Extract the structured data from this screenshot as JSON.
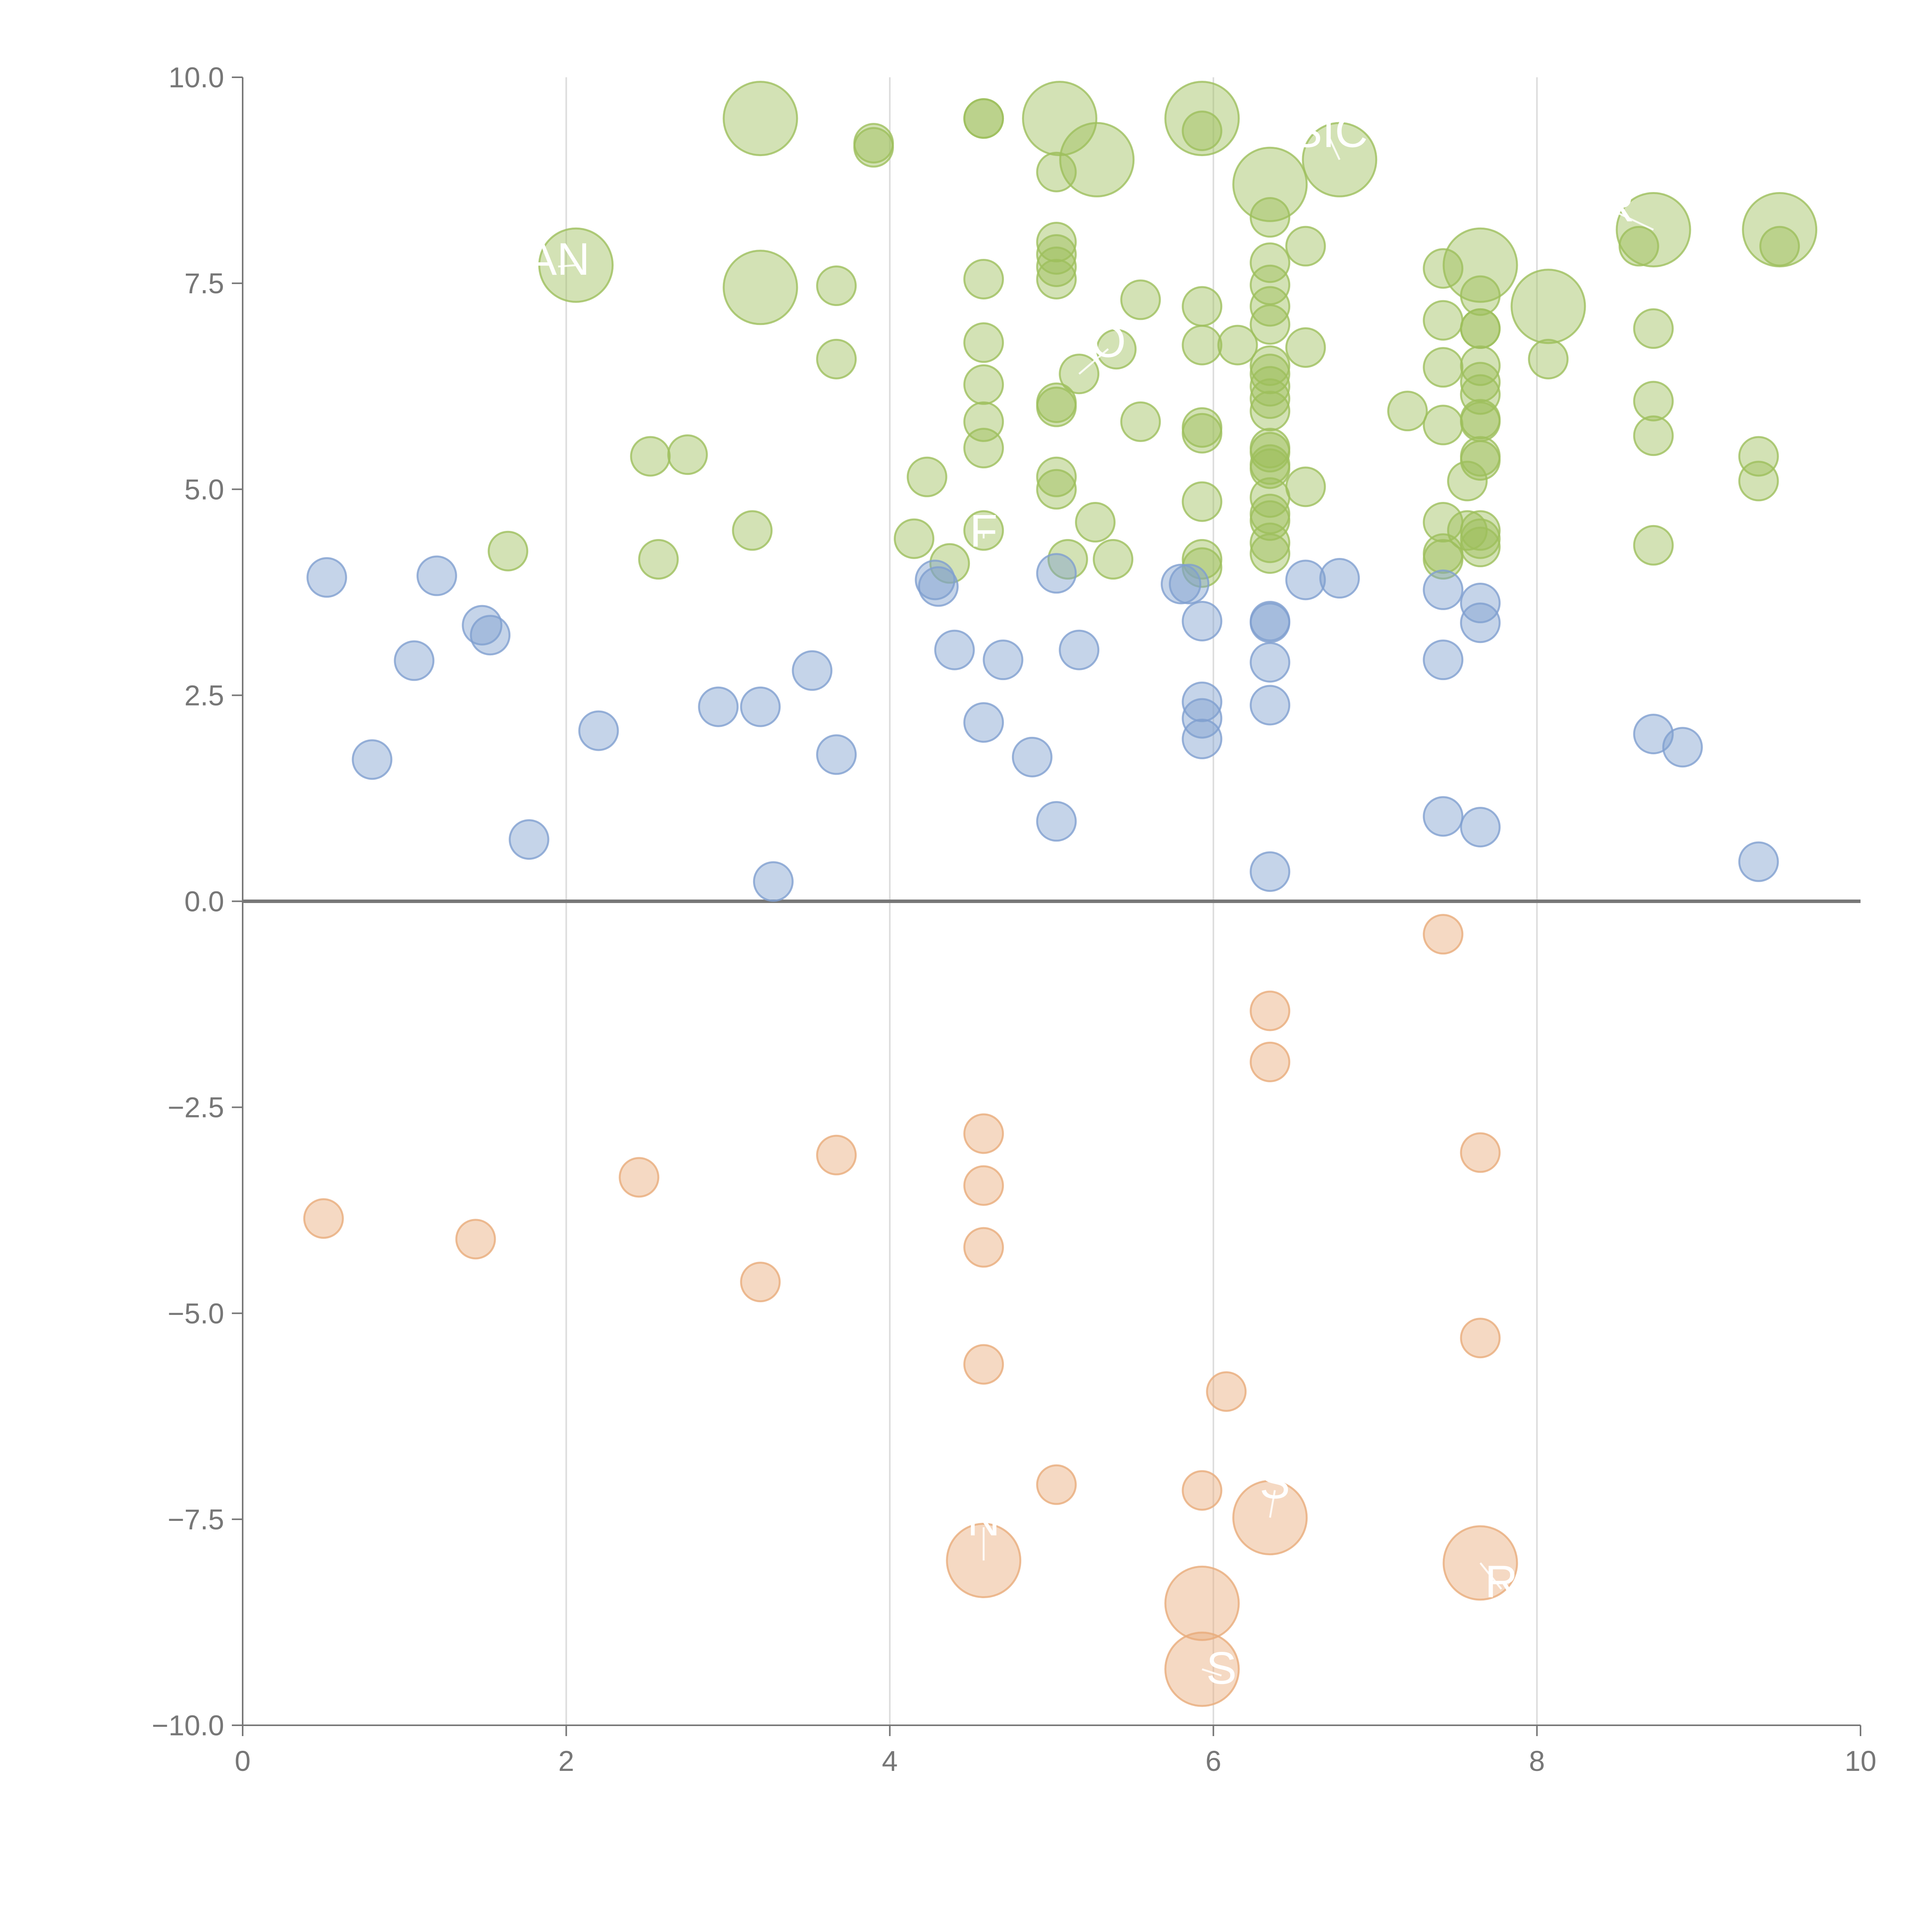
{
  "chart_data": {
    "type": "scatter",
    "title": "",
    "xlabel": "",
    "ylabel": "",
    "xlim": [
      0,
      10
    ],
    "ylim": [
      -10,
      10
    ],
    "x_ticks": [
      0,
      2,
      4,
      6,
      8,
      10
    ],
    "y_ticks": [
      10,
      7.5,
      5,
      2.5,
      0,
      -2.5,
      -5,
      -7.5,
      -10
    ],
    "x_tick_labels": [
      "0",
      "2",
      "4",
      "6",
      "8",
      "10"
    ],
    "y_tick_labels": [
      "10.0",
      "7.5",
      "5.0",
      "2.5",
      "0.0",
      "−2.5",
      "−5.0",
      "−7.5",
      "−10.0"
    ],
    "grid": "vertical",
    "legend": "none",
    "series": [
      {
        "name": "high",
        "color": "#9dbf5c",
        "points": [
          [
            3.2,
            9.5,
            2
          ],
          [
            5.05,
            9.5,
            2
          ],
          [
            5.93,
            9.5,
            2
          ],
          [
            5.28,
            9.0,
            2
          ],
          [
            6.78,
            9.0,
            2
          ],
          [
            6.35,
            8.7,
            2
          ],
          [
            8.72,
            8.15,
            2
          ],
          [
            9.5,
            8.15,
            2
          ],
          [
            2.06,
            7.72,
            2
          ],
          [
            7.65,
            7.72,
            2
          ],
          [
            3.2,
            7.45,
            2
          ],
          [
            8.07,
            7.22,
            2
          ],
          [
            3.9,
            9.2,
            1
          ],
          [
            3.9,
            9.15,
            1
          ],
          [
            4.58,
            9.5,
            1
          ],
          [
            4.58,
            9.5,
            1
          ],
          [
            5.03,
            8.85,
            1
          ],
          [
            5.93,
            9.35,
            1
          ],
          [
            6.35,
            8.3,
            1
          ],
          [
            6.57,
            7.95,
            1
          ],
          [
            8.63,
            7.95,
            1
          ],
          [
            9.5,
            7.95,
            1
          ],
          [
            5.03,
            8.0,
            1
          ],
          [
            5.03,
            7.85,
            1
          ],
          [
            5.03,
            7.7,
            1
          ],
          [
            5.03,
            7.55,
            1
          ],
          [
            6.35,
            7.75,
            1
          ],
          [
            7.42,
            7.68,
            1
          ],
          [
            4.58,
            7.55,
            1
          ],
          [
            3.67,
            7.47,
            1
          ],
          [
            6.35,
            7.48,
            1
          ],
          [
            7.65,
            7.35,
            1
          ],
          [
            5.55,
            7.3,
            1
          ],
          [
            5.93,
            7.22,
            1
          ],
          [
            6.35,
            7.22,
            1
          ],
          [
            6.35,
            7.0,
            1
          ],
          [
            7.42,
            7.05,
            1
          ],
          [
            7.65,
            6.95,
            1
          ],
          [
            7.65,
            6.95,
            1
          ],
          [
            8.72,
            6.95,
            1
          ],
          [
            4.58,
            6.78,
            1
          ],
          [
            5.93,
            6.75,
            1
          ],
          [
            6.15,
            6.75,
            1
          ],
          [
            6.57,
            6.72,
            1
          ],
          [
            5.4,
            6.7,
            1
          ],
          [
            3.67,
            6.58,
            1
          ],
          [
            8.07,
            6.58,
            1
          ],
          [
            6.35,
            6.5,
            1
          ],
          [
            7.42,
            6.48,
            1
          ],
          [
            7.65,
            6.5,
            1
          ],
          [
            5.17,
            6.4,
            1
          ],
          [
            6.35,
            6.4,
            1
          ],
          [
            7.65,
            6.3,
            1
          ],
          [
            6.35,
            6.25,
            1
          ],
          [
            4.58,
            6.27,
            1
          ],
          [
            7.65,
            6.15,
            1
          ],
          [
            6.35,
            6.1,
            1
          ],
          [
            8.72,
            6.07,
            1
          ],
          [
            5.03,
            6.05,
            1
          ],
          [
            5.03,
            6.0,
            1
          ],
          [
            6.35,
            5.95,
            1
          ],
          [
            7.2,
            5.95,
            1
          ],
          [
            4.58,
            5.82,
            1
          ],
          [
            5.55,
            5.82,
            1
          ],
          [
            7.42,
            5.78,
            1
          ],
          [
            7.65,
            5.85,
            1
          ],
          [
            7.65,
            5.82,
            1
          ],
          [
            5.93,
            5.75,
            1
          ],
          [
            5.93,
            5.68,
            1
          ],
          [
            8.72,
            5.65,
            1
          ],
          [
            4.58,
            5.5,
            1
          ],
          [
            6.35,
            5.5,
            1
          ],
          [
            6.35,
            5.45,
            1
          ],
          [
            2.52,
            5.4,
            1
          ],
          [
            2.75,
            5.42,
            1
          ],
          [
            7.65,
            5.4,
            1
          ],
          [
            7.65,
            5.35,
            1
          ],
          [
            9.37,
            5.4,
            1
          ],
          [
            6.35,
            5.3,
            1
          ],
          [
            6.35,
            5.25,
            1
          ],
          [
            4.23,
            5.15,
            1
          ],
          [
            5.03,
            5.15,
            1
          ],
          [
            7.57,
            5.1,
            1
          ],
          [
            9.37,
            5.1,
            1
          ],
          [
            6.57,
            5.03,
            1
          ],
          [
            5.03,
            5.0,
            1
          ],
          [
            6.35,
            4.9,
            1
          ],
          [
            5.93,
            4.85,
            1
          ],
          [
            6.35,
            4.7,
            1
          ],
          [
            6.35,
            4.62,
            1
          ],
          [
            5.27,
            4.6,
            1
          ],
          [
            7.42,
            4.6,
            1
          ],
          [
            3.15,
            4.5,
            1
          ],
          [
            4.58,
            4.5,
            1
          ],
          [
            7.57,
            4.5,
            1
          ],
          [
            7.65,
            4.5,
            1
          ],
          [
            7.65,
            4.4,
            1
          ],
          [
            4.15,
            4.4,
            1
          ],
          [
            6.35,
            4.35,
            1
          ],
          [
            8.72,
            4.32,
            1
          ],
          [
            7.65,
            4.3,
            1
          ],
          [
            1.64,
            4.25,
            1
          ],
          [
            6.35,
            4.22,
            1
          ],
          [
            7.42,
            4.22,
            1
          ],
          [
            7.42,
            4.15,
            1
          ],
          [
            2.57,
            4.15,
            1
          ],
          [
            5.38,
            4.15,
            1
          ],
          [
            5.93,
            4.15,
            1
          ],
          [
            5.1,
            4.15,
            1
          ],
          [
            4.37,
            4.1,
            1
          ],
          [
            5.93,
            4.05,
            1
          ]
        ]
      },
      {
        "name": "mid",
        "color": "#7f9fcf",
        "points": [
          [
            0.52,
            3.93,
            1
          ],
          [
            1.2,
            3.95,
            1
          ],
          [
            4.28,
            3.9,
            1
          ],
          [
            6.57,
            3.9,
            1
          ],
          [
            6.78,
            3.92,
            1
          ],
          [
            5.03,
            3.98,
            1
          ],
          [
            4.3,
            3.82,
            1
          ],
          [
            5.8,
            3.85,
            1
          ],
          [
            5.85,
            3.85,
            1
          ],
          [
            7.42,
            3.78,
            1
          ],
          [
            7.65,
            3.62,
            1
          ],
          [
            5.93,
            3.4,
            1
          ],
          [
            6.35,
            3.4,
            1
          ],
          [
            6.35,
            3.38,
            1
          ],
          [
            7.65,
            3.38,
            1
          ],
          [
            1.48,
            3.35,
            1
          ],
          [
            1.53,
            3.23,
            1
          ],
          [
            4.4,
            3.05,
            1
          ],
          [
            5.17,
            3.05,
            1
          ],
          [
            1.06,
            2.92,
            1
          ],
          [
            4.7,
            2.93,
            1
          ],
          [
            6.35,
            2.9,
            1
          ],
          [
            7.42,
            2.93,
            1
          ],
          [
            3.52,
            2.8,
            1
          ],
          [
            5.93,
            2.42,
            1
          ],
          [
            2.94,
            2.36,
            1
          ],
          [
            3.2,
            2.36,
            1
          ],
          [
            6.35,
            2.38,
            1
          ],
          [
            5.93,
            2.22,
            1
          ],
          [
            4.58,
            2.17,
            1
          ],
          [
            2.2,
            2.07,
            1
          ],
          [
            8.72,
            2.03,
            1
          ],
          [
            5.93,
            1.97,
            1
          ],
          [
            8.9,
            1.87,
            1
          ],
          [
            3.67,
            1.78,
            1
          ],
          [
            4.88,
            1.75,
            1
          ],
          [
            0.8,
            1.72,
            1
          ],
          [
            7.42,
            1.03,
            1
          ],
          [
            5.03,
            0.97,
            1
          ],
          [
            7.65,
            0.9,
            1
          ],
          [
            1.77,
            0.75,
            1
          ],
          [
            9.37,
            0.48,
            1
          ],
          [
            6.35,
            0.36,
            1
          ],
          [
            3.28,
            0.24,
            1
          ]
        ]
      },
      {
        "name": "low",
        "color": "#e8ab7a",
        "points": [
          [
            7.42,
            -0.4,
            1
          ],
          [
            6.35,
            -1.33,
            1
          ],
          [
            6.35,
            -1.95,
            1
          ],
          [
            4.58,
            -2.82,
            1
          ],
          [
            3.67,
            -3.08,
            1
          ],
          [
            7.65,
            -3.05,
            1
          ],
          [
            2.45,
            -3.35,
            1
          ],
          [
            4.58,
            -3.45,
            1
          ],
          [
            0.5,
            -3.85,
            1
          ],
          [
            1.44,
            -4.1,
            1
          ],
          [
            4.58,
            -4.2,
            1
          ],
          [
            3.2,
            -4.62,
            1
          ],
          [
            7.65,
            -5.3,
            1
          ],
          [
            4.58,
            -5.62,
            1
          ],
          [
            6.08,
            -5.95,
            1
          ],
          [
            5.03,
            -7.08,
            1
          ],
          [
            5.93,
            -7.15,
            1
          ],
          [
            6.35,
            -7.48,
            2
          ],
          [
            4.58,
            -8.0,
            2
          ],
          [
            7.65,
            -8.03,
            2
          ],
          [
            5.93,
            -8.52,
            2
          ],
          [
            5.93,
            -9.32,
            2
          ]
        ]
      }
    ],
    "labels": [
      {
        "text": "AN",
        "x": 1.95,
        "y": 7.75,
        "ax": 2.06,
        "ay": 7.72
      },
      {
        "text": "SIC",
        "x": 6.72,
        "y": 9.3,
        "ax": 6.78,
        "ay": 9.0
      },
      {
        "text": "R",
        "x": 8.5,
        "y": 8.4,
        "ax": 8.72,
        "ay": 8.15
      },
      {
        "text": "O",
        "x": 5.35,
        "y": 6.75,
        "ax": 5.17,
        "ay": 6.4
      },
      {
        "text": "F",
        "x": 4.58,
        "y": 4.45,
        "ax": 4.58,
        "ay": 4.5
      },
      {
        "text": "N",
        "x": 4.58,
        "y": -7.55,
        "ax": 4.58,
        "ay": -8.0
      },
      {
        "text": "S",
        "x": 6.38,
        "y": -7.1,
        "ax": 6.35,
        "ay": -7.48
      },
      {
        "text": "R",
        "x": 7.78,
        "y": -8.3,
        "ax": 7.65,
        "ay": -8.03
      },
      {
        "text": "S",
        "x": 6.05,
        "y": -9.35,
        "ax": 5.93,
        "ay": -9.32
      }
    ]
  }
}
